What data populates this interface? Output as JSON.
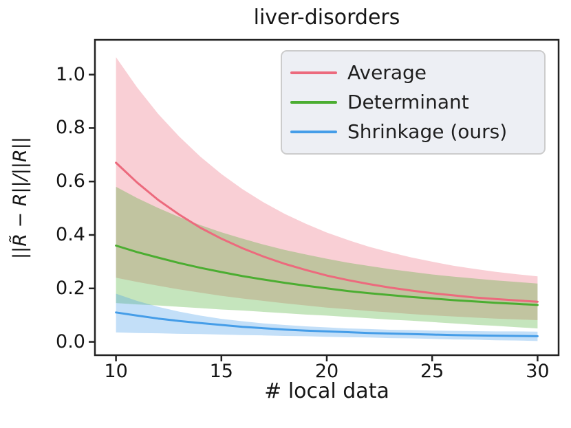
{
  "figure": {
    "title": "liver-disorders",
    "xlabel": "# local data",
    "ylabel": "||R̃ − R||/||R||"
  },
  "chart_data": {
    "type": "line",
    "title": "liver-disorders",
    "xlabel": "# local data",
    "ylabel": "||R̃ − R||/||R||",
    "grid": false,
    "legend_position": "upper right",
    "xlim": [
      9,
      31
    ],
    "ylim": [
      -0.05,
      1.13
    ],
    "x_ticks": [
      10,
      15,
      20,
      25,
      30
    ],
    "x_tick_labels": [
      "10",
      "15",
      "20",
      "25",
      "30"
    ],
    "y_ticks": [
      0.0,
      0.2,
      0.4,
      0.6,
      0.8,
      1.0
    ],
    "y_tick_labels": [
      "0.0",
      "0.2",
      "0.4",
      "0.6",
      "0.8",
      "1.0"
    ],
    "band_opacity": 0.32,
    "axis_color": "#222222",
    "x": [
      10,
      11,
      12,
      13,
      14,
      15,
      16,
      17,
      18,
      19,
      20,
      21,
      22,
      23,
      24,
      25,
      26,
      27,
      28,
      29,
      30
    ],
    "series": [
      {
        "name": "Average",
        "color": "#ec6a7d",
        "values": [
          0.67,
          0.596,
          0.531,
          0.476,
          0.427,
          0.386,
          0.35,
          0.319,
          0.292,
          0.269,
          0.248,
          0.231,
          0.216,
          0.203,
          0.192,
          0.182,
          0.174,
          0.166,
          0.16,
          0.155,
          0.15
        ],
        "band_hi": [
          1.065,
          0.952,
          0.853,
          0.768,
          0.693,
          0.628,
          0.571,
          0.522,
          0.479,
          0.442,
          0.409,
          0.381,
          0.356,
          0.335,
          0.316,
          0.3,
          0.285,
          0.273,
          0.262,
          0.253,
          0.245
        ],
        "band_lo": [
          0.24,
          0.224,
          0.21,
          0.196,
          0.184,
          0.172,
          0.162,
          0.153,
          0.144,
          0.136,
          0.128,
          0.122,
          0.115,
          0.11,
          0.104,
          0.099,
          0.095,
          0.091,
          0.087,
          0.084,
          0.081
        ]
      },
      {
        "name": "Determinant",
        "color": "#4bad31",
        "values": [
          0.36,
          0.336,
          0.315,
          0.295,
          0.277,
          0.261,
          0.246,
          0.233,
          0.221,
          0.21,
          0.2,
          0.19,
          0.182,
          0.175,
          0.168,
          0.162,
          0.156,
          0.151,
          0.146,
          0.142,
          0.138
        ],
        "band_hi": [
          0.58,
          0.538,
          0.501,
          0.467,
          0.437,
          0.41,
          0.386,
          0.364,
          0.344,
          0.327,
          0.311,
          0.296,
          0.284,
          0.272,
          0.262,
          0.252,
          0.244,
          0.237,
          0.23,
          0.224,
          0.218
        ],
        "band_lo": [
          0.145,
          0.14,
          0.136,
          0.131,
          0.126,
          0.121,
          0.117,
          0.112,
          0.107,
          0.102,
          0.098,
          0.093,
          0.088,
          0.083,
          0.079,
          0.074,
          0.069,
          0.064,
          0.06,
          0.055,
          0.05
        ]
      },
      {
        "name": "Shrinkage (ours)",
        "color": "#459de8",
        "values": [
          0.11,
          0.098,
          0.087,
          0.078,
          0.07,
          0.063,
          0.056,
          0.051,
          0.046,
          0.042,
          0.039,
          0.036,
          0.033,
          0.031,
          0.029,
          0.027,
          0.025,
          0.024,
          0.023,
          0.022,
          0.021
        ],
        "band_hi": [
          0.18,
          0.153,
          0.131,
          0.113,
          0.098,
          0.086,
          0.077,
          0.069,
          0.063,
          0.058,
          0.054,
          0.05,
          0.048,
          0.045,
          0.044,
          0.042,
          0.041,
          0.04,
          0.039,
          0.039,
          0.038
        ],
        "band_lo": [
          0.035,
          0.033,
          0.032,
          0.03,
          0.029,
          0.027,
          0.025,
          0.024,
          0.022,
          0.021,
          0.019,
          0.017,
          0.016,
          0.014,
          0.013,
          0.011,
          0.009,
          0.008,
          0.006,
          0.005,
          0.003
        ]
      }
    ]
  }
}
